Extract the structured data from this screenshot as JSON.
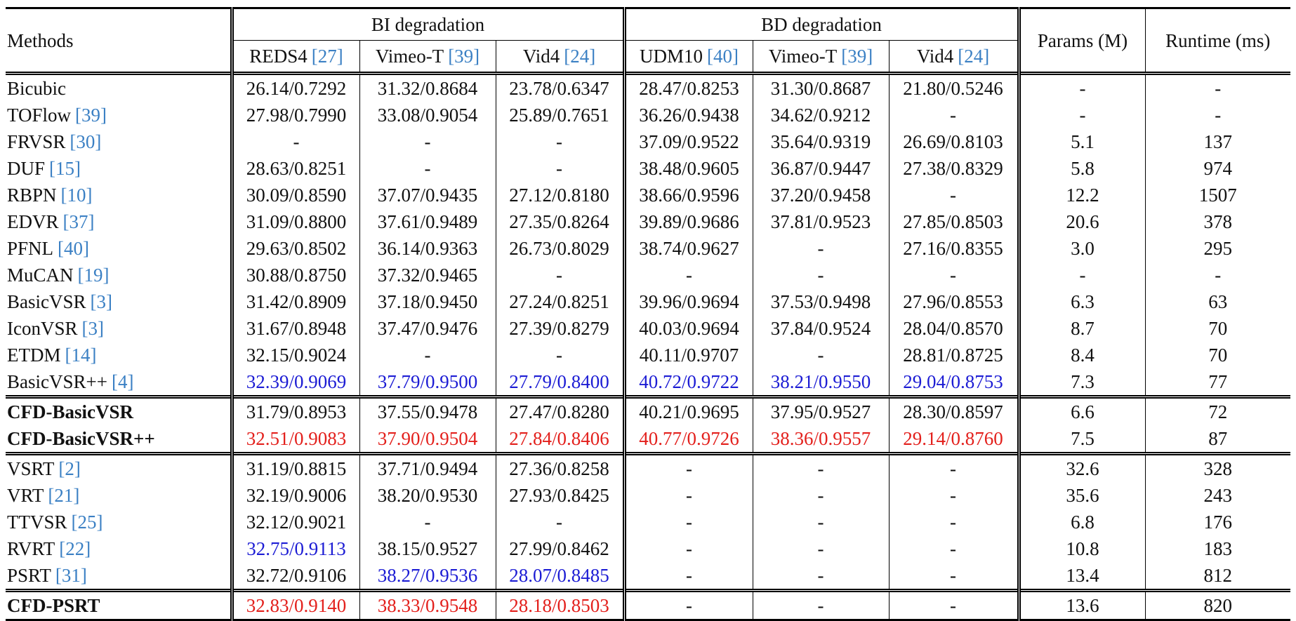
{
  "table": {
    "header": {
      "methods": "Methods",
      "groups": [
        "BI degradation",
        "BD degradation"
      ],
      "params": "Params (M)",
      "runtime": "Runtime (ms)",
      "subcolumns": [
        {
          "name": "REDS4",
          "ref": "[27]"
        },
        {
          "name": "Vimeo-T",
          "ref": "[39]"
        },
        {
          "name": "Vid4",
          "ref": "[24]"
        },
        {
          "name": "UDM10",
          "ref": "[40]"
        },
        {
          "name": "Vimeo-T",
          "ref": "[39]"
        },
        {
          "name": "Vid4",
          "ref": "[24]"
        }
      ]
    },
    "highlight_colors": {
      "blue": "#1c1cd4",
      "red": "#e3201c",
      "ref": "#3b80c4"
    },
    "groups": [
      {
        "rows": [
          {
            "method": "Bicubic",
            "cells": [
              "26.14/0.7292",
              "31.32/0.8684",
              "23.78/0.6347",
              "28.47/0.8253",
              "31.30/0.8687",
              "21.80/0.5246"
            ],
            "params": "-",
            "runtime": "-"
          },
          {
            "method": "TOFlow",
            "ref": "[39]",
            "cells": [
              "27.98/0.7990",
              "33.08/0.9054",
              "25.89/0.7651",
              "36.26/0.9438",
              "34.62/0.9212",
              "-"
            ],
            "params": "-",
            "runtime": "-"
          },
          {
            "method": "FRVSR",
            "ref": "[30]",
            "cells": [
              "-",
              "-",
              "-",
              "37.09/0.9522",
              "35.64/0.9319",
              "26.69/0.8103"
            ],
            "params": "5.1",
            "runtime": "137"
          },
          {
            "method": "DUF",
            "ref": "[15]",
            "cells": [
              "28.63/0.8251",
              "-",
              "-",
              "38.48/0.9605",
              "36.87/0.9447",
              "27.38/0.8329"
            ],
            "params": "5.8",
            "runtime": "974"
          },
          {
            "method": "RBPN",
            "ref": "[10]",
            "cells": [
              "30.09/0.8590",
              "37.07/0.9435",
              "27.12/0.8180",
              "38.66/0.9596",
              "37.20/0.9458",
              "-"
            ],
            "params": "12.2",
            "runtime": "1507"
          },
          {
            "method": "EDVR",
            "ref": "[37]",
            "cells": [
              "31.09/0.8800",
              "37.61/0.9489",
              "27.35/0.8264",
              "39.89/0.9686",
              "37.81/0.9523",
              "27.85/0.8503"
            ],
            "params": "20.6",
            "runtime": "378"
          },
          {
            "method": "PFNL",
            "ref": "[40]",
            "cells": [
              "29.63/0.8502",
              "36.14/0.9363",
              "26.73/0.8029",
              "38.74/0.9627",
              "-",
              "27.16/0.8355"
            ],
            "params": "3.0",
            "runtime": "295"
          },
          {
            "method": "MuCAN",
            "ref": "[19]",
            "cells": [
              "30.88/0.8750",
              "37.32/0.9465",
              "-",
              "-",
              "-",
              "-"
            ],
            "params": "-",
            "runtime": "-"
          },
          {
            "method": "BasicVSR",
            "ref": "[3]",
            "cells": [
              "31.42/0.8909",
              "37.18/0.9450",
              "27.24/0.8251",
              "39.96/0.9694",
              "37.53/0.9498",
              "27.96/0.8553"
            ],
            "params": "6.3",
            "runtime": "63"
          },
          {
            "method": "IconVSR",
            "ref": "[3]",
            "cells": [
              "31.67/0.8948",
              "37.47/0.9476",
              "27.39/0.8279",
              "40.03/0.9694",
              "37.84/0.9524",
              "28.04/0.8570"
            ],
            "params": "8.7",
            "runtime": "70"
          },
          {
            "method": "ETDM",
            "ref": "[14]",
            "cells": [
              "32.15/0.9024",
              "-",
              "-",
              "40.11/0.9707",
              "-",
              "28.81/0.8725"
            ],
            "params": "8.4",
            "runtime": "70"
          },
          {
            "method": "BasicVSR++",
            "ref": "[4]",
            "cells": [
              {
                "text": "32.39/0.9069",
                "color": "blue"
              },
              {
                "text": "37.79/0.9500",
                "color": "blue"
              },
              {
                "text": "27.79/0.8400",
                "color": "blue"
              },
              {
                "text": "40.72/0.9722",
                "color": "blue"
              },
              {
                "text": "38.21/0.9550",
                "color": "blue"
              },
              {
                "text": "29.04/0.8753",
                "color": "blue"
              }
            ],
            "params": "7.3",
            "runtime": "77"
          }
        ]
      },
      {
        "rows": [
          {
            "method": "CFD-BasicVSR",
            "bold": true,
            "cells": [
              "31.79/0.8953",
              "37.55/0.9478",
              "27.47/0.8280",
              "40.21/0.9695",
              "37.95/0.9527",
              "28.30/0.8597"
            ],
            "params": "6.6",
            "runtime": "72"
          },
          {
            "method": "CFD-BasicVSR++",
            "bold": true,
            "cells": [
              {
                "text": "32.51/0.9083",
                "color": "red"
              },
              {
                "text": "37.90/0.9504",
                "color": "red"
              },
              {
                "text": "27.84/0.8406",
                "color": "red"
              },
              {
                "text": "40.77/0.9726",
                "color": "red"
              },
              {
                "text": "38.36/0.9557",
                "color": "red"
              },
              {
                "text": "29.14/0.8760",
                "color": "red"
              }
            ],
            "params": "7.5",
            "runtime": "87"
          }
        ]
      },
      {
        "rows": [
          {
            "method": "VSRT",
            "ref": "[2]",
            "cells": [
              "31.19/0.8815",
              "37.71/0.9494",
              "27.36/0.8258",
              "-",
              "-",
              "-"
            ],
            "params": "32.6",
            "runtime": "328"
          },
          {
            "method": "VRT",
            "ref": "[21]",
            "cells": [
              "32.19/0.9006",
              "38.20/0.9530",
              "27.93/0.8425",
              "-",
              "-",
              "-"
            ],
            "params": "35.6",
            "runtime": "243"
          },
          {
            "method": "TTVSR",
            "ref": "[25]",
            "cells": [
              "32.12/0.9021",
              "-",
              "-",
              "-",
              "-",
              "-"
            ],
            "params": "6.8",
            "runtime": "176"
          },
          {
            "method": "RVRT",
            "ref": "[22]",
            "cells": [
              {
                "text": "32.75/0.9113",
                "color": "blue"
              },
              "38.15/0.9527",
              "27.99/0.8462",
              "-",
              "-",
              "-"
            ],
            "params": "10.8",
            "runtime": "183"
          },
          {
            "method": "PSRT",
            "ref": "[31]",
            "cells": [
              "32.72/0.9106",
              {
                "text": "38.27/0.9536",
                "color": "blue"
              },
              {
                "text": "28.07/0.8485",
                "color": "blue"
              },
              "-",
              "-",
              "-"
            ],
            "params": "13.4",
            "runtime": "812"
          }
        ]
      },
      {
        "rows": [
          {
            "method": "CFD-PSRT",
            "bold": true,
            "cells": [
              {
                "text": "32.83/0.9140",
                "color": "red"
              },
              {
                "text": "38.33/0.9548",
                "color": "red"
              },
              {
                "text": "28.18/0.8503",
                "color": "red"
              },
              "-",
              "-",
              "-"
            ],
            "params": "13.6",
            "runtime": "820"
          }
        ]
      }
    ]
  }
}
